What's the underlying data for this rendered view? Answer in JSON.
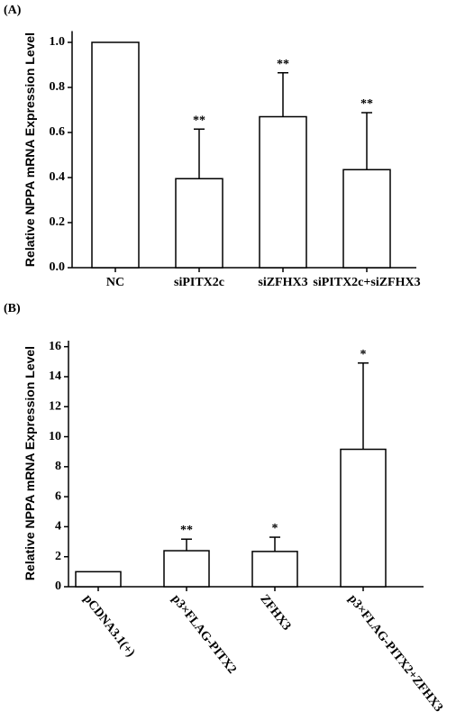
{
  "chart_data": [
    {
      "type": "bar",
      "panel_label": "(A)",
      "ylabel": "Relative NPPA mRNA Expression Level",
      "categories": [
        "NC",
        "siPITX2c",
        "siZFHX3",
        "siPITX2c+siZFHX3"
      ],
      "values": [
        1.0,
        0.395,
        0.67,
        0.435
      ],
      "errors": [
        null,
        0.22,
        0.195,
        0.253
      ],
      "annotations": [
        null,
        "**",
        "**",
        "**"
      ],
      "color": "#ffffff",
      "ylim": [
        0,
        1.05
      ],
      "yticks": [
        {
          "value": 0,
          "label": "0.0"
        },
        0.2,
        0.4,
        0.6,
        0.8,
        {
          "value": 1,
          "label": "1.0"
        }
      ]
    },
    {
      "type": "bar",
      "panel_label": "(B)",
      "ylabel": "Relative NPPA mRNA Expression Level",
      "categories": [
        "pCDNA3.1(+)",
        "p3×FLAG-PITX2",
        "ZFHX3",
        "p3×FLAG-PITX2+ZFHX3"
      ],
      "values": [
        1.0,
        2.4,
        2.35,
        9.16
      ],
      "errors": [
        null,
        0.77,
        0.95,
        5.75
      ],
      "annotations": [
        null,
        "**",
        "*",
        "*"
      ],
      "color": "#ffffff",
      "ylim": [
        0,
        16.4
      ],
      "yticks": [
        0,
        2,
        4,
        6,
        8,
        10,
        12,
        14,
        16
      ]
    }
  ]
}
